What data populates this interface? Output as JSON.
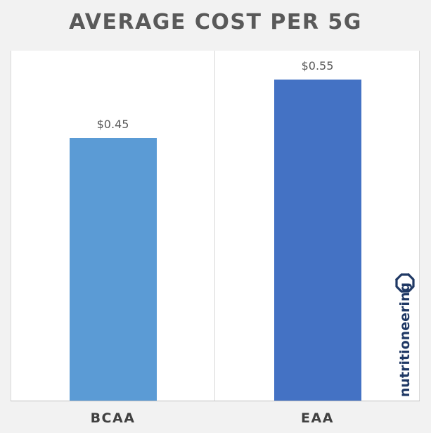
{
  "chart_data": {
    "type": "bar",
    "title": "AVERAGE COST PER 5G",
    "categories": [
      "BCAA",
      "EAA"
    ],
    "values": [
      0.45,
      0.55
    ],
    "data_labels": [
      "$0.45",
      "$0.55"
    ],
    "colors": [
      "#5b9bd5",
      "#4472c4"
    ],
    "xlabel": "",
    "ylabel": "",
    "ylim": [
      0,
      0.6
    ],
    "grid": false,
    "legend": "none"
  },
  "branding": {
    "logo_text": "nutritioneering",
    "logo_icon": "octagon-ring-icon",
    "logo_color": "#1f3864"
  }
}
